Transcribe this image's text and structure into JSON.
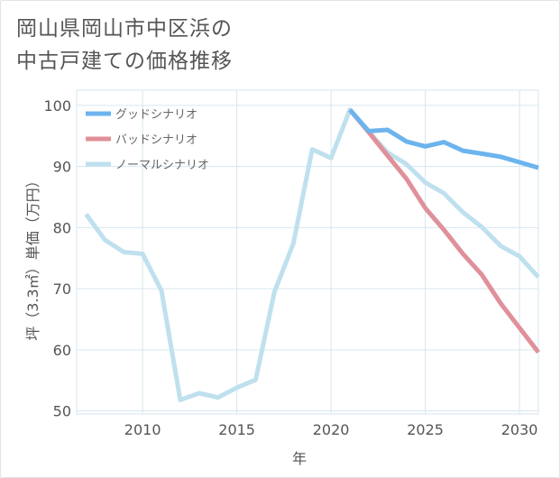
{
  "title": {
    "line1": "岡山県岡山市中区浜の",
    "line2": "中古戸建ての価格推移"
  },
  "chart_data": {
    "type": "line",
    "xlabel": "年",
    "ylabel": "坪（3.3㎡）単価（万円）",
    "xlim": [
      2006.5,
      2031
    ],
    "ylim": [
      49.5,
      102.5
    ],
    "x_ticks": [
      2010,
      2015,
      2020,
      2025,
      2030
    ],
    "y_ticks": [
      50,
      60,
      70,
      80,
      90,
      100
    ],
    "grid": true,
    "legend_position": "top-left",
    "series": [
      {
        "name": "グッドシナリオ",
        "color": "#6cb4ee",
        "x": [
          2021,
          2022,
          2023,
          2024,
          2025,
          2026,
          2027,
          2028,
          2029,
          2030,
          2031
        ],
        "values": [
          99.3,
          95.8,
          96.0,
          94.1,
          93.3,
          94.0,
          92.6,
          92.1,
          91.6,
          90.7,
          89.8
        ]
      },
      {
        "name": "バッドシナリオ",
        "color": "#e0909a",
        "x": [
          2021,
          2022,
          2023,
          2024,
          2025,
          2026,
          2027,
          2028,
          2029,
          2030,
          2031
        ],
        "values": [
          99.3,
          95.6,
          91.8,
          88.0,
          83.2,
          79.6,
          75.7,
          72.3,
          67.6,
          63.6,
          59.6
        ]
      },
      {
        "name": "ノーマルシナリオ",
        "color": "#bfe0ee",
        "x": [
          2007,
          2008,
          2009,
          2010,
          2011,
          2012,
          2013,
          2014,
          2015,
          2016,
          2017,
          2018,
          2019,
          2020,
          2021,
          2022,
          2023,
          2024,
          2025,
          2026,
          2027,
          2028,
          2029,
          2030,
          2031
        ],
        "values": [
          82.2,
          78.0,
          76.0,
          75.7,
          69.7,
          51.8,
          52.9,
          52.2,
          53.8,
          55.1,
          69.5,
          77.4,
          92.8,
          91.4,
          99.3,
          95.7,
          92.3,
          90.4,
          87.4,
          85.6,
          82.5,
          80.1,
          77.0,
          75.3,
          71.9
        ]
      }
    ]
  }
}
